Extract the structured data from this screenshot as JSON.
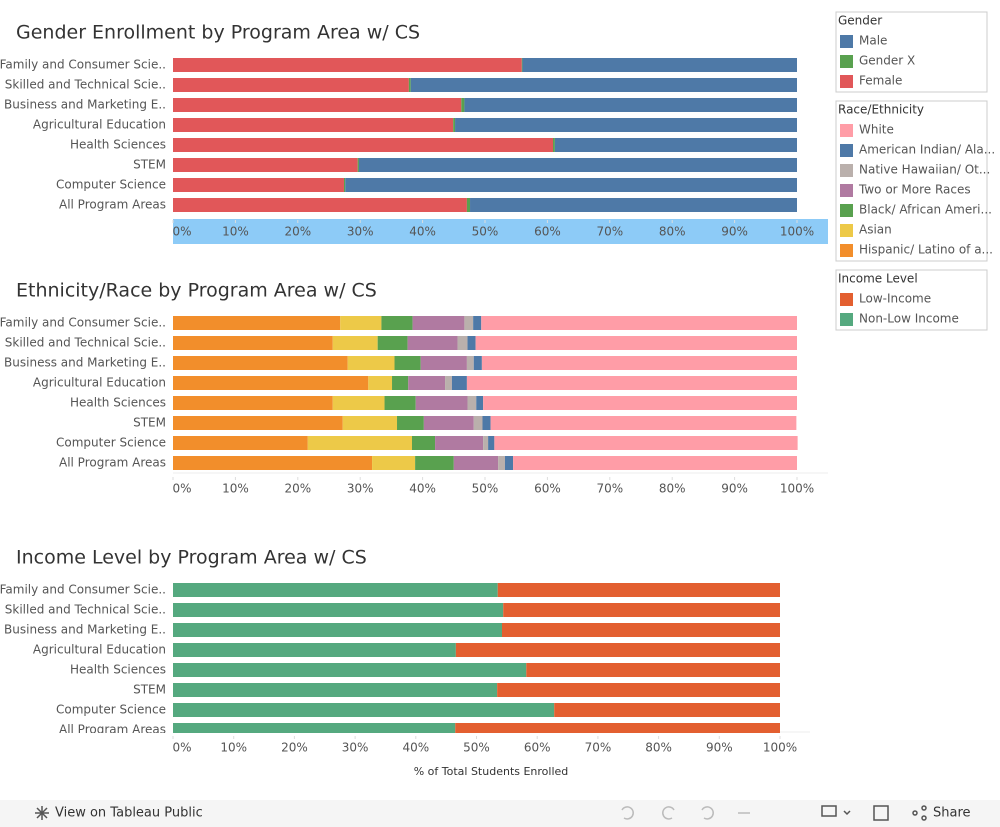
{
  "chart_data": [
    {
      "type": "bar",
      "stacked": true,
      "title": "Gender Enrollment by Program Area w/ CS",
      "categories": [
        "Family and Consumer Scie..",
        "Skilled and Technical Scie..",
        "Business and Marketing E..",
        "Agricultural Education",
        "Health Sciences",
        "STEM",
        "Computer Science",
        "All Program Areas"
      ],
      "legend_title": "Gender",
      "series": [
        {
          "name": "Male",
          "color": "#4e79a7",
          "values": [
            44.0,
            61.9,
            53.3,
            54.8,
            38.8,
            70.2,
            72.4,
            52.4
          ]
        },
        {
          "name": "Gender X",
          "color": "#59a14f",
          "values": [
            0.1,
            0.3,
            0.5,
            0.3,
            0.3,
            0.2,
            0.2,
            0.5
          ]
        },
        {
          "name": "Female",
          "color": "#e15759",
          "values": [
            55.9,
            37.8,
            46.2,
            44.9,
            60.9,
            29.6,
            27.4,
            47.1
          ]
        }
      ],
      "xlim": [
        0,
        100
      ],
      "xticks": [
        {
          "value": 0,
          "label": "0%"
        },
        {
          "value": 10,
          "label": "10%"
        },
        {
          "value": 20,
          "label": "20%"
        },
        {
          "value": 30,
          "label": "30%"
        },
        {
          "value": 40,
          "label": "40%"
        },
        {
          "value": 50,
          "label": "50%"
        },
        {
          "value": 60,
          "label": "60%"
        },
        {
          "value": 70,
          "label": "70%"
        },
        {
          "value": 80,
          "label": "80%"
        },
        {
          "value": 90,
          "label": "90%"
        },
        {
          "value": 100,
          "label": "100%"
        }
      ]
    },
    {
      "type": "bar",
      "stacked": true,
      "title": "Ethnicity/Race by Program Area w/ CS",
      "categories": [
        "Family and Consumer Scie..",
        "Skilled and Technical Scie..",
        "Business and Marketing E..",
        "Agricultural Education",
        "Health Sciences",
        "STEM",
        "Computer Science",
        "All Program Areas"
      ],
      "legend_title": "Race/Ethnicity",
      "series": [
        {
          "name": "White",
          "color": "#ff9da7",
          "values": [
            50.6,
            51.5,
            50.5,
            52.9,
            50.3,
            49.0,
            48.6,
            45.5
          ]
        },
        {
          "name": "American Indian/ Ala...",
          "color": "#4e79a7",
          "values": [
            1.3,
            1.3,
            1.3,
            2.4,
            1.1,
            1.3,
            1.0,
            1.3
          ]
        },
        {
          "name": "Native Hawaiian/ Ot...",
          "color": "#bab0ac",
          "values": [
            1.4,
            1.6,
            1.1,
            1.1,
            1.4,
            1.4,
            0.8,
            1.1
          ]
        },
        {
          "name": "Two or More Races",
          "color": "#b07aa1",
          "values": [
            8.3,
            8.0,
            7.4,
            5.9,
            8.3,
            8.0,
            7.7,
            7.1
          ]
        },
        {
          "name": "Black/ African Ameri...",
          "color": "#59a14f",
          "values": [
            5.0,
            4.8,
            4.2,
            2.6,
            5.0,
            4.3,
            3.7,
            6.2
          ]
        },
        {
          "name": "Asian",
          "color": "#edc948",
          "values": [
            6.6,
            7.2,
            7.5,
            3.8,
            8.3,
            8.7,
            16.7,
            6.9
          ]
        },
        {
          "name": "Hispanic/ Latino of a...",
          "color": "#f28e2b",
          "values": [
            26.8,
            25.6,
            28.0,
            31.3,
            25.6,
            27.2,
            21.6,
            31.9
          ]
        }
      ],
      "xlim": [
        0,
        100
      ],
      "xticks": [
        {
          "value": 0,
          "label": "0%"
        },
        {
          "value": 10,
          "label": "10%"
        },
        {
          "value": 20,
          "label": "20%"
        },
        {
          "value": 30,
          "label": "30%"
        },
        {
          "value": 40,
          "label": "40%"
        },
        {
          "value": 50,
          "label": "50%"
        },
        {
          "value": 60,
          "label": "60%"
        },
        {
          "value": 70,
          "label": "70%"
        },
        {
          "value": 80,
          "label": "80%"
        },
        {
          "value": 90,
          "label": "90%"
        },
        {
          "value": 100,
          "label": "100%"
        }
      ]
    },
    {
      "type": "bar",
      "stacked": true,
      "title": "Income Level by Program Area w/ CS",
      "categories": [
        "Family and Consumer Scie..",
        "Skilled and Technical Scie..",
        "Business and Marketing E..",
        "Agricultural Education",
        "Health Sciences",
        "STEM",
        "Computer Science",
        "All Program Areas"
      ],
      "legend_title": "Income Level",
      "x_label": "% of Total Students Enrolled",
      "series": [
        {
          "name": "Low-Income",
          "color": "#e35f30",
          "values": [
            46.5,
            45.6,
            45.8,
            53.4,
            41.8,
            46.6,
            37.2,
            53.5
          ]
        },
        {
          "name": "Non-Low Income",
          "color": "#55a97f",
          "values": [
            53.5,
            54.4,
            54.2,
            46.6,
            58.2,
            53.4,
            62.8,
            46.5
          ]
        }
      ],
      "xlim": [
        0,
        100
      ],
      "xticks": [
        {
          "value": 0,
          "label": "0%"
        },
        {
          "value": 10,
          "label": "10%"
        },
        {
          "value": 20,
          "label": "20%"
        },
        {
          "value": 30,
          "label": "30%"
        },
        {
          "value": 40,
          "label": "40%"
        },
        {
          "value": 50,
          "label": "50%"
        },
        {
          "value": 60,
          "label": "60%"
        },
        {
          "value": 70,
          "label": "70%"
        },
        {
          "value": 80,
          "label": "80%"
        },
        {
          "value": 90,
          "label": "90%"
        },
        {
          "value": 100,
          "label": "100%"
        }
      ]
    }
  ],
  "toolbar": {
    "view_link": "View on Tableau Public",
    "share": "Share"
  }
}
